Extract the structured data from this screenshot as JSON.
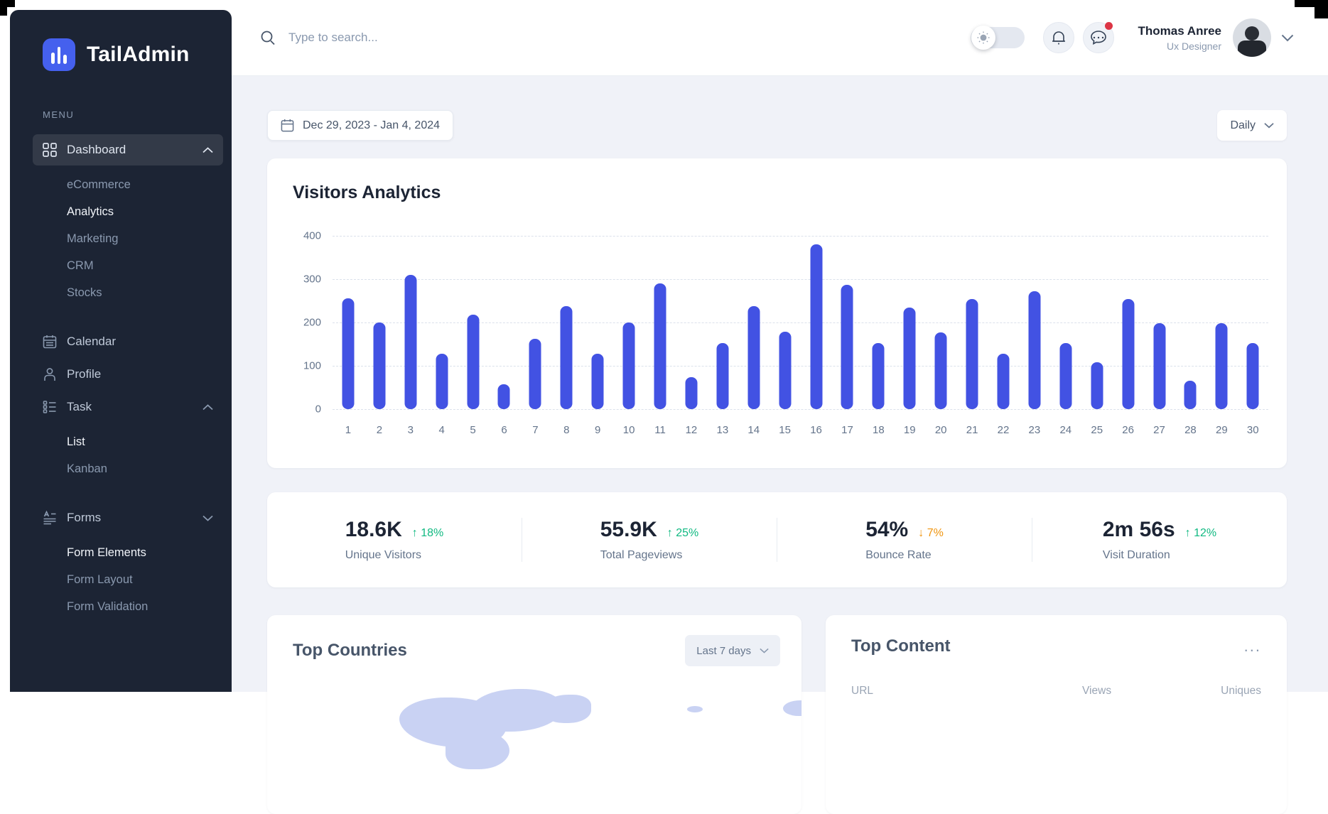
{
  "sidebar": {
    "logo_text": "TailAdmin",
    "menu_label": "MENU",
    "items": [
      {
        "label": "Dashboard",
        "icon": "grid-icon",
        "active": true,
        "chevron": "up",
        "children": [
          {
            "label": "eCommerce",
            "active": false
          },
          {
            "label": "Analytics",
            "active": true
          },
          {
            "label": "Marketing",
            "active": false
          },
          {
            "label": "CRM",
            "active": false
          },
          {
            "label": "Stocks",
            "active": false
          }
        ]
      },
      {
        "label": "Calendar",
        "icon": "calendar-icon"
      },
      {
        "label": "Profile",
        "icon": "user-icon"
      },
      {
        "label": "Task",
        "icon": "task-list-icon",
        "chevron": "up",
        "children": [
          {
            "label": "List",
            "active": true
          },
          {
            "label": "Kanban",
            "active": false
          }
        ]
      },
      {
        "label": "Forms",
        "icon": "form-icon",
        "chevron": "down",
        "children": [
          {
            "label": "Form Elements",
            "active": true
          },
          {
            "label": "Form Layout",
            "active": false
          },
          {
            "label": "Form Validation",
            "active": false
          }
        ]
      }
    ]
  },
  "header": {
    "search_placeholder": "Type to search...",
    "user_name": "Thomas Anree",
    "user_role": "Ux Designer"
  },
  "toolbar": {
    "date_range": "Dec 29, 2023 - Jan 4, 2024",
    "period": "Daily"
  },
  "chart_data": {
    "type": "bar",
    "title": "Visitors Analytics",
    "categories": [
      "1",
      "2",
      "3",
      "4",
      "5",
      "6",
      "7",
      "8",
      "9",
      "10",
      "11",
      "12",
      "13",
      "14",
      "15",
      "16",
      "17",
      "18",
      "19",
      "20",
      "21",
      "22",
      "23",
      "24",
      "25",
      "26",
      "27",
      "28",
      "29",
      "30"
    ],
    "values": [
      255,
      200,
      310,
      128,
      218,
      57,
      163,
      237,
      128,
      200,
      290,
      74,
      153,
      237,
      178,
      380,
      287,
      152,
      235,
      177,
      254,
      128,
      272,
      152,
      109,
      254,
      199,
      66,
      199,
      152
    ],
    "xlabel": "",
    "ylabel": "",
    "ylim": [
      0,
      400
    ],
    "yticks": [
      0,
      100,
      200,
      300,
      400
    ],
    "grid": "dashed-horizontal",
    "legend": "none",
    "bar_color": "#4252E3"
  },
  "stats": [
    {
      "value": "18.6K",
      "delta": "18%",
      "arrow": "↑",
      "direction": "up",
      "label": "Unique Visitors"
    },
    {
      "value": "55.9K",
      "delta": "25%",
      "arrow": "↑",
      "direction": "up",
      "label": "Total Pageviews"
    },
    {
      "value": "54%",
      "delta": "7%",
      "arrow": "↓",
      "direction": "down",
      "label": "Bounce Rate"
    },
    {
      "value": "2m 56s",
      "delta": "12%",
      "arrow": "↑",
      "direction": "up",
      "label": "Visit Duration"
    }
  ],
  "top_countries": {
    "title": "Top Countries",
    "period": "Last 7 days"
  },
  "top_content": {
    "title": "Top Content",
    "menu": "...",
    "columns": [
      "URL",
      "Views",
      "Uniques"
    ]
  },
  "colors": {
    "sidebar_bg": "#1C2434",
    "active_item_bg": "#333A48",
    "logo_blue": "#4560EE",
    "content_bg": "#F0F2F8",
    "bar": "#4252E3",
    "green": "#10B981",
    "orange": "#F0950F",
    "red_badge": "#DC3545",
    "text_dark": "#1C2434",
    "text_gray": "#64748B",
    "map": "#C9D2F3"
  }
}
